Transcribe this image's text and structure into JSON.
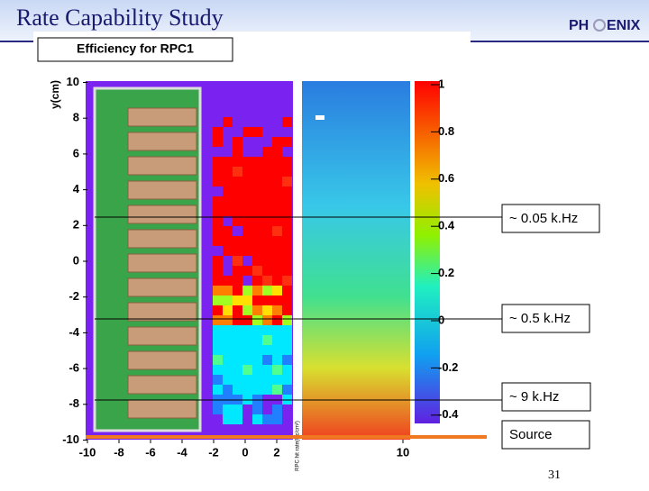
{
  "header": {
    "title": "Rate Capability Study",
    "logo_left": "PH",
    "logo_right": "ENIX"
  },
  "figure": {
    "title": "Efficiency for RPC1",
    "y_label": "y(cm)",
    "y_ticks": [
      10,
      8,
      6,
      4,
      2,
      0,
      -2,
      -4,
      -6,
      -8,
      -10
    ],
    "x_ticks": [
      -10,
      -8,
      -6,
      -4,
      -2,
      0,
      2,
      10
    ],
    "colorbar_ticks": [
      1,
      0.8,
      0.6,
      0.4,
      0.2,
      0,
      -0.2,
      -0.4
    ],
    "rate_axis_label": "RPC hit rate(Hz/cm²)"
  },
  "annotations": [
    "~ 0.05 k.Hz",
    "~ 0.5 k.Hz",
    "~ 9 k.Hz",
    "Source"
  ],
  "page_number": "31"
}
